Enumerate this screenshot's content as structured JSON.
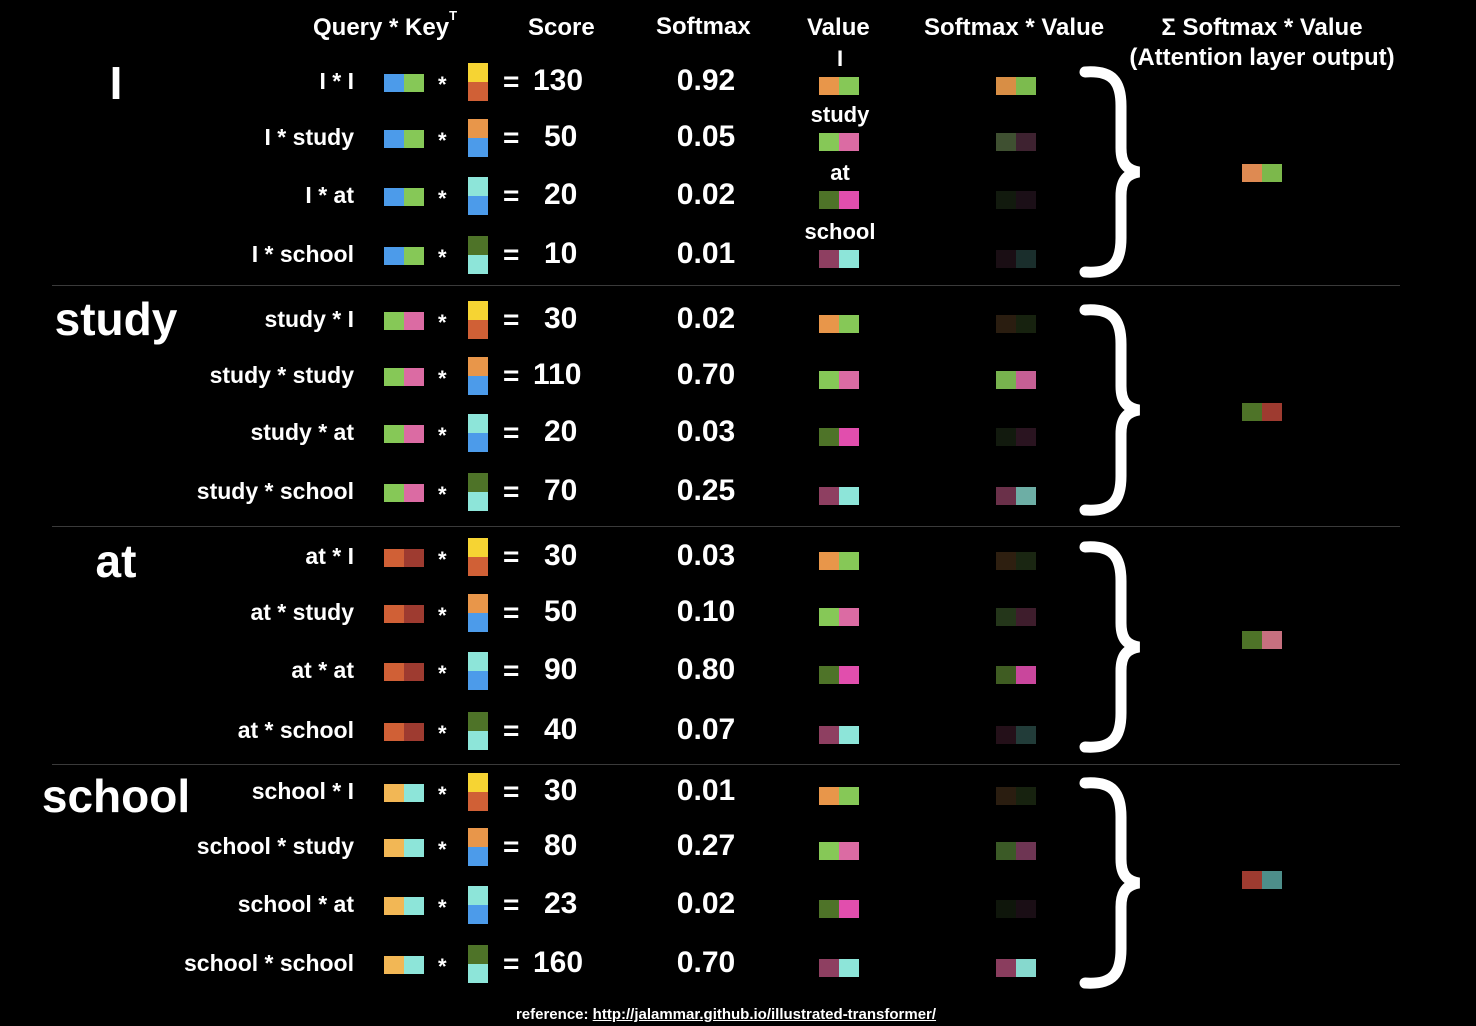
{
  "headers": {
    "query_key": "Query * Key",
    "query_key_sup": "T",
    "score": "Score",
    "softmax": "Softmax",
    "value": "Value",
    "softmax_value": "Softmax * Value",
    "output_line1": "Σ Softmax * Value",
    "output_line2": "(Attention layer output)"
  },
  "operators": {
    "times": "*",
    "equals": "="
  },
  "colors": {
    "yellow": "#F6D433",
    "orange": "#E8964A",
    "blue": "#4C9BEA",
    "green": "#86C857",
    "pink": "#DB6BA3",
    "aqua": "#8DE5D9",
    "rust": "#D06036",
    "darkred": "#9E3B30",
    "olive": "#4E7328",
    "plum": "#8E3F61",
    "bright_pink": "#E14EAD"
  },
  "groups": [
    {
      "word": "I",
      "query_colors": [
        "#4C9BEA",
        "#86C857"
      ],
      "output_colors": [
        "#DE8A52",
        "#7CB84B"
      ],
      "rows": [
        {
          "label": "I * I",
          "key_colors": [
            "#F6D433",
            "#D06036"
          ],
          "score": "130",
          "softmax": "0.92",
          "value_label": "I",
          "value_colors": [
            "#E8964A",
            "#86C857"
          ],
          "weighted_colors": [
            "#D88E45",
            "#7CBB4E"
          ]
        },
        {
          "label": "I * study",
          "key_colors": [
            "#E8964A",
            "#4C9BEA"
          ],
          "score": "50",
          "softmax": "0.05",
          "value_label": "study",
          "value_colors": [
            "#86C857",
            "#DB6BA3"
          ],
          "weighted_colors": [
            "#3F5031",
            "#3E2230"
          ]
        },
        {
          "label": "I * at",
          "key_colors": [
            "#8DE5D9",
            "#4C9BEA"
          ],
          "score": "20",
          "softmax": "0.02",
          "value_label": "at",
          "value_colors": [
            "#4E7328",
            "#E14EAD"
          ],
          "weighted_colors": [
            "#121A0E",
            "#1B0F17"
          ]
        },
        {
          "label": "I * school",
          "key_colors": [
            "#4E7328",
            "#8DE5D9"
          ],
          "score": "10",
          "softmax": "0.01",
          "value_label": "school",
          "value_colors": [
            "#8E3F61",
            "#8DE5D9"
          ],
          "weighted_colors": [
            "#1A0E14",
            "#1A2E2C"
          ]
        }
      ]
    },
    {
      "word": "study",
      "query_colors": [
        "#86C857",
        "#DB6BA3"
      ],
      "output_colors": [
        "#4E7328",
        "#9E3B30"
      ],
      "rows": [
        {
          "label": "study * I",
          "key_colors": [
            "#F6D433",
            "#D06036"
          ],
          "score": "30",
          "softmax": "0.02",
          "value_label": "",
          "value_colors": [
            "#E8964A",
            "#86C857"
          ],
          "weighted_colors": [
            "#2A1D10",
            "#17220F"
          ]
        },
        {
          "label": "study * study",
          "key_colors": [
            "#E8964A",
            "#4C9BEA"
          ],
          "score": "110",
          "softmax": "0.70",
          "value_label": "",
          "value_colors": [
            "#86C857",
            "#DB6BA3"
          ],
          "weighted_colors": [
            "#78B24E",
            "#C55F94"
          ]
        },
        {
          "label": "study * at",
          "key_colors": [
            "#8DE5D9",
            "#4C9BEA"
          ],
          "score": "20",
          "softmax": "0.03",
          "value_label": "",
          "value_colors": [
            "#4E7328",
            "#E14EAD"
          ],
          "weighted_colors": [
            "#121A0E",
            "#2A1420"
          ]
        },
        {
          "label": "study * school",
          "key_colors": [
            "#4E7328",
            "#8DE5D9"
          ],
          "score": "70",
          "softmax": "0.25",
          "value_label": "",
          "value_colors": [
            "#8E3F61",
            "#8DE5D9"
          ],
          "weighted_colors": [
            "#6A3049",
            "#6DAEA5"
          ]
        }
      ]
    },
    {
      "word": "at",
      "query_colors": [
        "#D06036",
        "#9E3B30"
      ],
      "output_colors": [
        "#4E7328",
        "#C7707F"
      ],
      "rows": [
        {
          "label": "at * I",
          "key_colors": [
            "#F6D433",
            "#D06036"
          ],
          "score": "30",
          "softmax": "0.03",
          "value_label": "",
          "value_colors": [
            "#E8964A",
            "#86C857"
          ],
          "weighted_colors": [
            "#2E1F10",
            "#1A2612"
          ]
        },
        {
          "label": "at * study",
          "key_colors": [
            "#E8964A",
            "#4C9BEA"
          ],
          "score": "50",
          "softmax": "0.10",
          "value_label": "",
          "value_colors": [
            "#86C857",
            "#DB6BA3"
          ],
          "weighted_colors": [
            "#24361A",
            "#3E1D2C"
          ]
        },
        {
          "label": "at * at",
          "key_colors": [
            "#8DE5D9",
            "#4C9BEA"
          ],
          "score": "90",
          "softmax": "0.80",
          "value_label": "",
          "value_colors": [
            "#4E7328",
            "#E14EAD"
          ],
          "weighted_colors": [
            "#3F5C22",
            "#C9469C"
          ]
        },
        {
          "label": "at * school",
          "key_colors": [
            "#4E7328",
            "#8DE5D9"
          ],
          "score": "40",
          "softmax": "0.07",
          "value_label": "",
          "value_colors": [
            "#8E3F61",
            "#8DE5D9"
          ],
          "weighted_colors": [
            "#241019",
            "#223C39"
          ]
        }
      ]
    },
    {
      "word": "school",
      "query_colors": [
        "#F2B755",
        "#8DE5D9"
      ],
      "output_colors": [
        "#9E3B30",
        "#4D8E8A"
      ],
      "rows": [
        {
          "label": "school * I",
          "key_colors": [
            "#F6D433",
            "#D06036"
          ],
          "score": "30",
          "softmax": "0.01",
          "value_label": "",
          "value_colors": [
            "#E8964A",
            "#86C857"
          ],
          "weighted_colors": [
            "#2A1D10",
            "#17220F"
          ]
        },
        {
          "label": "school * study",
          "key_colors": [
            "#E8964A",
            "#4C9BEA"
          ],
          "score": "80",
          "softmax": "0.27",
          "value_label": "",
          "value_colors": [
            "#86C857",
            "#DB6BA3"
          ],
          "weighted_colors": [
            "#3B5A26",
            "#6E3553"
          ]
        },
        {
          "label": "school * at",
          "key_colors": [
            "#8DE5D9",
            "#4C9BEA"
          ],
          "score": "23",
          "softmax": "0.02",
          "value_label": "",
          "value_colors": [
            "#4E7328",
            "#E14EAD"
          ],
          "weighted_colors": [
            "#0F160B",
            "#1A0E15"
          ]
        },
        {
          "label": "school * school",
          "key_colors": [
            "#4E7328",
            "#8DE5D9"
          ],
          "score": "160",
          "softmax": "0.70",
          "value_label": "",
          "value_colors": [
            "#8E3F61",
            "#8DE5D9"
          ],
          "weighted_colors": [
            "#8A3D5E",
            "#86D9CE"
          ]
        }
      ]
    }
  ],
  "reference": {
    "prefix": "reference: ",
    "link": "http://jalammar.github.io/illustrated-transformer/"
  }
}
